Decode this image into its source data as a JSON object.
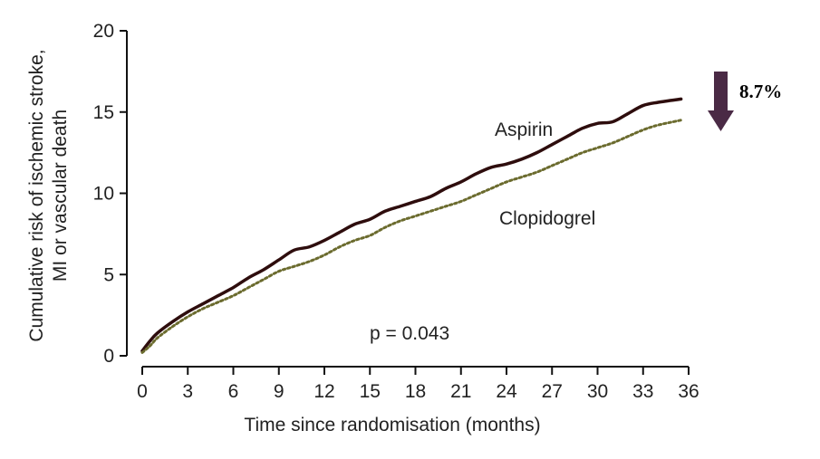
{
  "chart_data": {
    "type": "line",
    "xlabel": "Time since randomisation (months)",
    "ylabel_lines": [
      "Cumulative risk of ischemic stroke,",
      "MI or vascular death"
    ],
    "xlim": [
      0,
      36
    ],
    "ylim": [
      0,
      20
    ],
    "x_ticks": [
      0,
      3,
      6,
      9,
      12,
      15,
      18,
      21,
      24,
      27,
      30,
      33,
      36
    ],
    "y_ticks": [
      0,
      5,
      10,
      15,
      20
    ],
    "grid": false,
    "series": [
      {
        "name": "Aspirin",
        "line_style": "solid",
        "color": "#2e0d0d",
        "x": [
          0,
          0.5,
          1,
          2,
          3,
          4,
          5,
          6,
          7,
          8,
          9,
          10,
          11,
          12,
          13,
          14,
          15,
          16,
          17,
          18,
          19,
          20,
          21,
          22,
          23,
          24,
          25,
          26,
          27,
          28,
          29,
          30,
          31,
          32,
          33,
          34,
          35.5
        ],
        "y": [
          0.3,
          0.9,
          1.4,
          2.1,
          2.7,
          3.2,
          3.7,
          4.2,
          4.8,
          5.3,
          5.9,
          6.5,
          6.7,
          7.1,
          7.6,
          8.1,
          8.4,
          8.9,
          9.2,
          9.5,
          9.8,
          10.3,
          10.7,
          11.2,
          11.6,
          11.8,
          12.1,
          12.5,
          13.0,
          13.5,
          14.0,
          14.3,
          14.4,
          14.9,
          15.4,
          15.6,
          15.8
        ]
      },
      {
        "name": "Clopidogrel",
        "line_style": "dotted",
        "color": "#6b6b2e",
        "x": [
          0,
          0.5,
          1,
          2,
          3,
          4,
          5,
          6,
          7,
          8,
          9,
          10,
          11,
          12,
          13,
          14,
          15,
          16,
          17,
          18,
          19,
          20,
          21,
          22,
          23,
          24,
          25,
          26,
          27,
          28,
          29,
          30,
          31,
          32,
          33,
          34,
          35.5
        ],
        "y": [
          0.2,
          0.6,
          1.1,
          1.8,
          2.4,
          2.9,
          3.3,
          3.7,
          4.2,
          4.7,
          5.2,
          5.5,
          5.8,
          6.2,
          6.7,
          7.1,
          7.4,
          7.9,
          8.3,
          8.6,
          8.9,
          9.2,
          9.5,
          9.9,
          10.3,
          10.7,
          11.0,
          11.3,
          11.7,
          12.1,
          12.5,
          12.8,
          13.1,
          13.5,
          13.9,
          14.2,
          14.5
        ]
      }
    ],
    "annotations": {
      "p_value": "p = 0.043",
      "reduction": "8.7%",
      "arrow_color": "#4a2a45"
    }
  }
}
